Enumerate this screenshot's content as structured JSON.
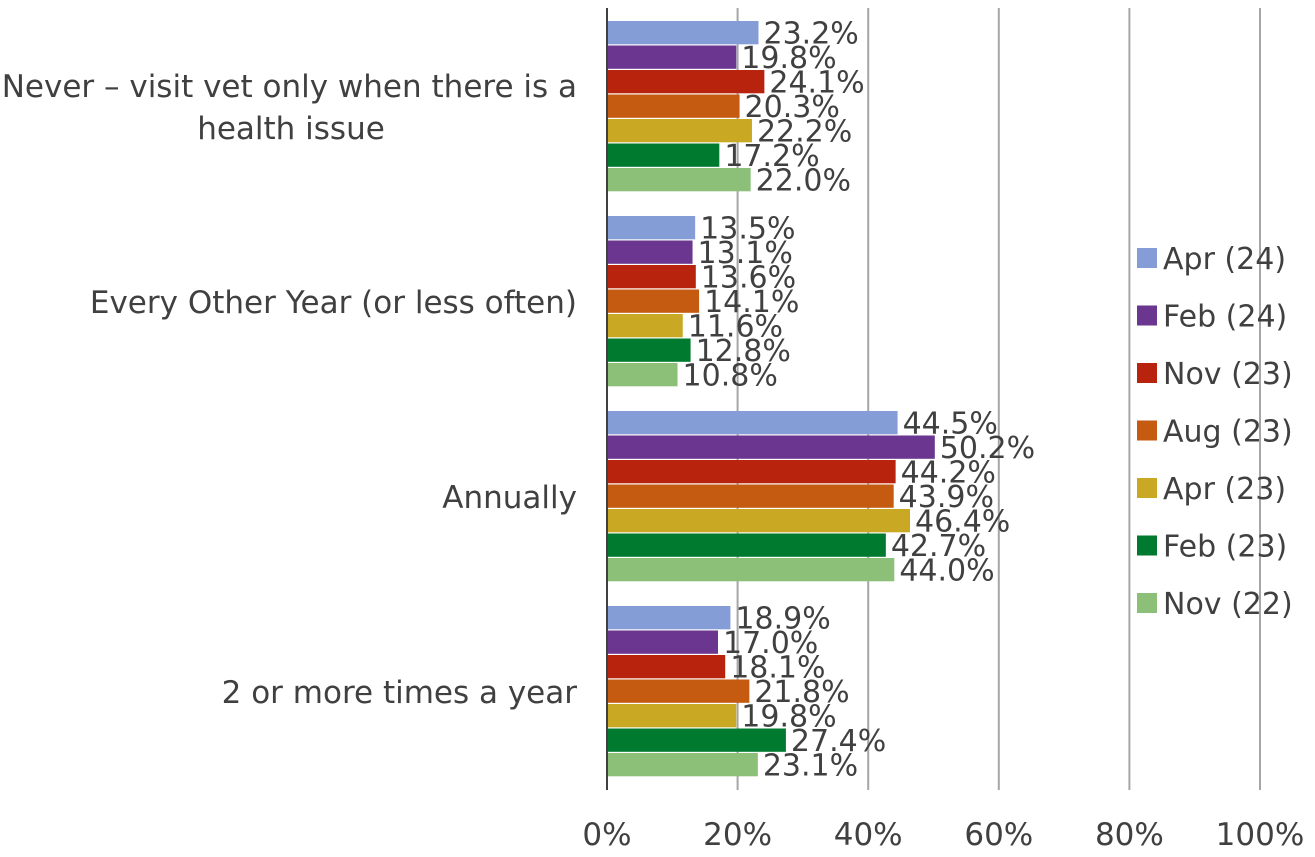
{
  "chart_data": {
    "type": "bar",
    "orientation": "horizontal",
    "categories": [
      "Never – visit vet only when there is a health issue",
      "Every Other Year (or less often)",
      "Annually",
      "2 or more times a year"
    ],
    "category_lines": [
      [
        "Never – visit vet only when there is a",
        "health issue"
      ],
      [
        "Every Other Year (or less often)"
      ],
      [
        "Annually"
      ],
      [
        "2 or more times a year"
      ]
    ],
    "series": [
      {
        "name": "Apr (24)",
        "color": "#849DD6",
        "values": [
          23.2,
          13.5,
          44.5,
          18.9
        ],
        "labels": [
          "23.2%",
          "13.5%",
          "44.5%",
          "18.9%"
        ]
      },
      {
        "name": "Feb (24)",
        "color": "#6A368F",
        "values": [
          19.8,
          13.1,
          50.2,
          17.0
        ],
        "labels": [
          "19.8%",
          "13.1%",
          "50.2%",
          "17.0%"
        ]
      },
      {
        "name": "Nov (23)",
        "color": "#B8230E",
        "values": [
          24.1,
          13.6,
          44.2,
          18.1
        ],
        "labels": [
          "24.1%",
          "13.6%",
          "44.2%",
          "18.1%"
        ]
      },
      {
        "name": "Aug (23)",
        "color": "#C55A11",
        "values": [
          20.3,
          14.1,
          43.9,
          21.8
        ],
        "labels": [
          "20.3%",
          "14.1%",
          "43.9%",
          "21.8%"
        ]
      },
      {
        "name": "Apr (23)",
        "color": "#C9A823",
        "values": [
          22.2,
          11.6,
          46.4,
          19.8
        ],
        "labels": [
          "22.2%",
          "11.6%",
          "46.4%",
          "19.8%"
        ]
      },
      {
        "name": "Feb (23)",
        "color": "#007A2E",
        "values": [
          17.2,
          12.8,
          42.7,
          27.4
        ],
        "labels": [
          "17.2%",
          "12.8%",
          "42.7%",
          "27.4%"
        ]
      },
      {
        "name": "Nov (22)",
        "color": "#8CBF78",
        "values": [
          22.0,
          10.8,
          44.0,
          23.1
        ],
        "labels": [
          "22.0%",
          "10.8%",
          "44.0%",
          "23.1%"
        ]
      }
    ],
    "xlim": [
      0,
      100
    ],
    "x_ticks": [
      "0%",
      "20%",
      "40%",
      "60%",
      "80%",
      "100%"
    ],
    "grid": true,
    "legend_position": "right",
    "title": "",
    "xlabel": "",
    "ylabel": ""
  }
}
